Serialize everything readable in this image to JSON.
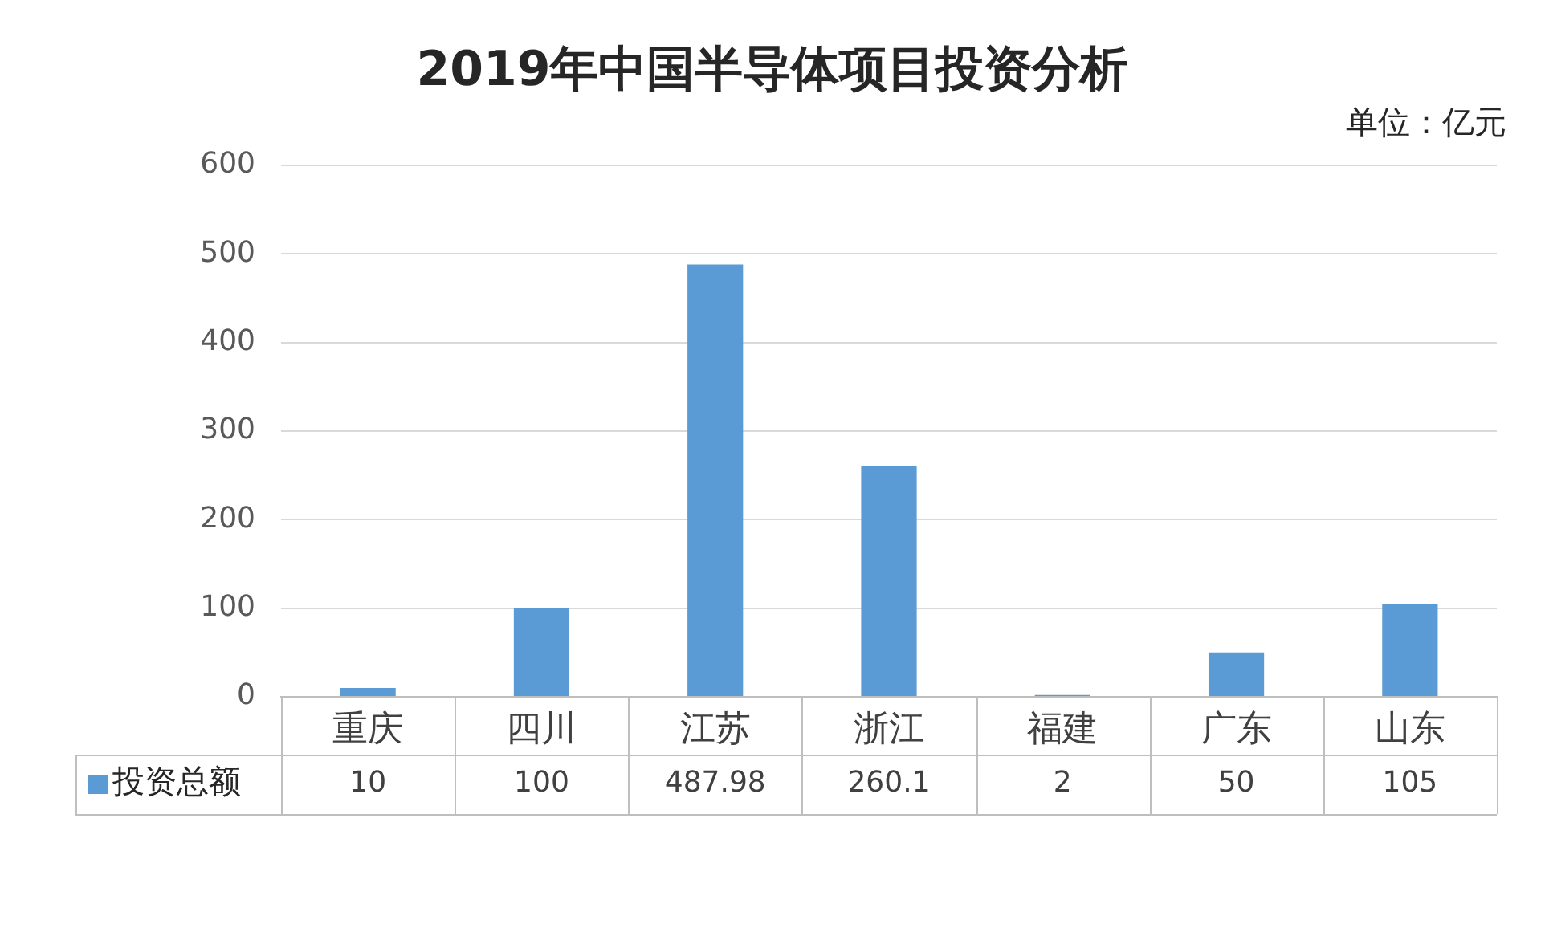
{
  "chart_data": {
    "type": "bar",
    "title": "2019年中国半导体项目投资分析",
    "annotations": [
      "单位：亿元"
    ],
    "categories": [
      "重庆",
      "四川",
      "江苏",
      "浙江",
      "福建",
      "广东",
      "山东"
    ],
    "series": [
      {
        "name": "投资总额",
        "color": "#5b9bd5",
        "values": [
          10,
          100,
          487.98,
          260.1,
          2,
          50,
          105
        ]
      }
    ],
    "ylim": [
      0,
      600
    ],
    "yticks": [
      0,
      100,
      200,
      300,
      400,
      500,
      600
    ],
    "grid": "y",
    "legend": "bottom",
    "data_labels": true
  }
}
